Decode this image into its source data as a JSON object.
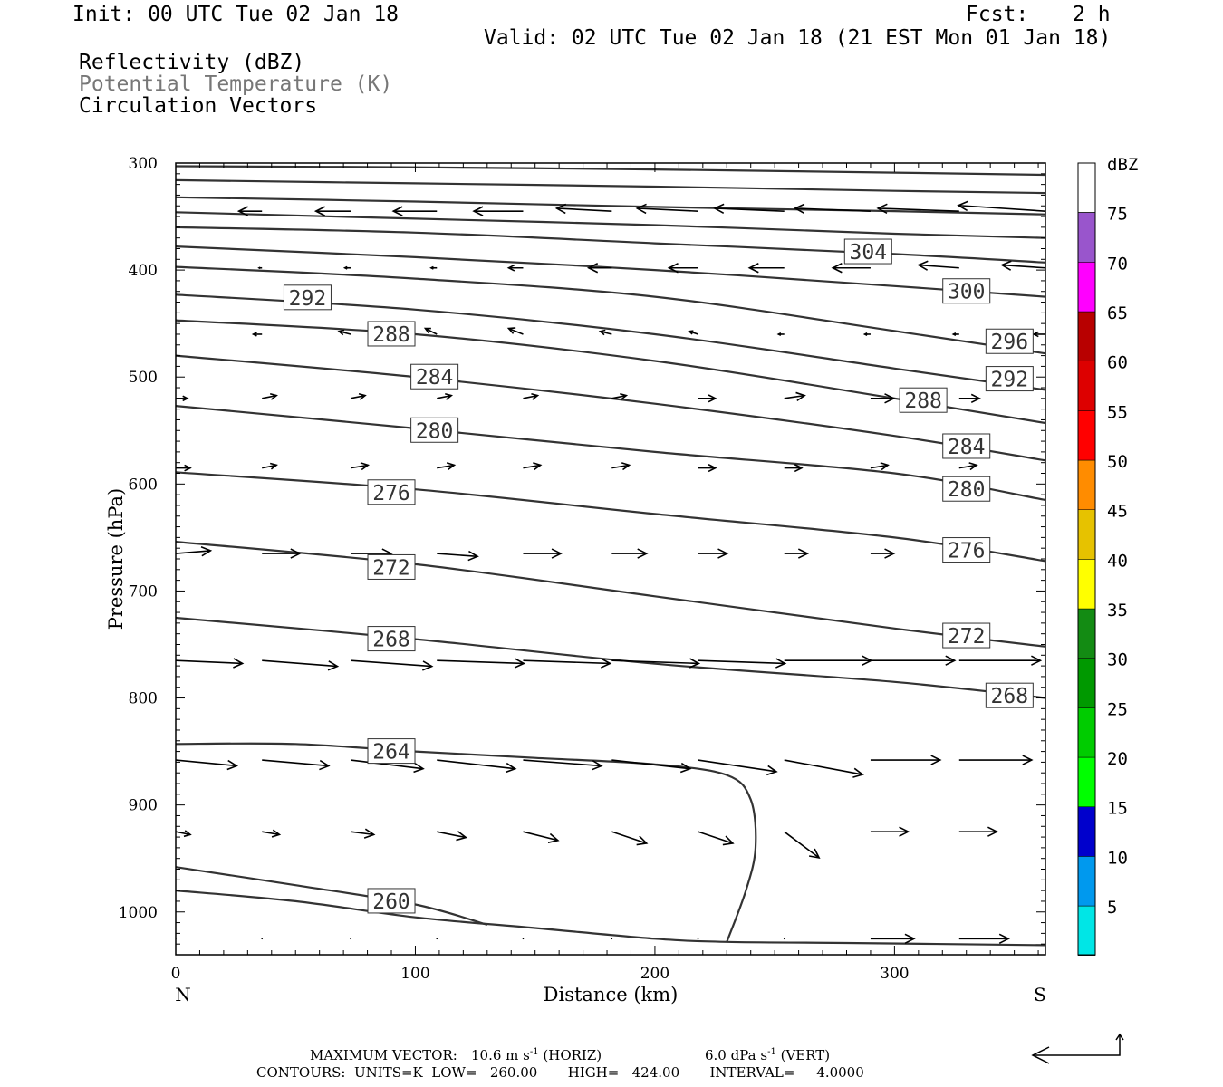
{
  "header": {
    "init": "Init: 00 UTC Tue 02 Jan 18",
    "fcst_label": "Fcst:",
    "fcst_value": "2 h",
    "valid": "Valid: 02 UTC Tue 02 Jan 18 (21 EST Mon 01 Jan 18)",
    "fields": [
      "Reflectivity (dBZ)",
      "Potential Temperature (K)",
      "Circulation Vectors"
    ]
  },
  "chart_data": {
    "type": "cross-section",
    "xlabel": "Distance (km)",
    "ylabel": "Pressure (hPa)",
    "xlim": [
      0,
      363
    ],
    "ylim": [
      1040,
      300
    ],
    "x_ticks": [
      0,
      100,
      200,
      300
    ],
    "y_ticks": [
      300,
      400,
      500,
      600,
      700,
      800,
      900,
      1000
    ],
    "x_end_labels": {
      "left": "N",
      "right": "S"
    },
    "contours": [
      {
        "level": 260,
        "points": [
          [
            0,
            958
          ],
          [
            50,
            975
          ],
          [
            100,
            993
          ],
          [
            130,
            1012
          ]
        ],
        "label": "260",
        "label_at": [
          90,
          990
        ]
      },
      {
        "level": 264,
        "points": [
          [
            0,
            843
          ],
          [
            50,
            843
          ],
          [
            100,
            850
          ],
          [
            150,
            856
          ],
          [
            200,
            862
          ],
          [
            230,
            872
          ],
          [
            240,
            895
          ],
          [
            242,
            940
          ],
          [
            238,
            980
          ],
          [
            230,
            1028
          ]
        ],
        "label": "264",
        "label_at": [
          90,
          850
        ]
      },
      {
        "level": 264,
        "points": [
          [
            0,
            980
          ],
          [
            50,
            990
          ],
          [
            100,
            1005
          ],
          [
            150,
            1015
          ],
          [
            200,
            1025
          ],
          [
            230,
            1028
          ],
          [
            280,
            1029
          ],
          [
            363,
            1031
          ]
        ]
      },
      {
        "level": 268,
        "points": [
          [
            0,
            725
          ],
          [
            100,
            745
          ],
          [
            200,
            768
          ],
          [
            300,
            785
          ],
          [
            363,
            800
          ]
        ],
        "label": "268",
        "label_at": [
          90,
          745
        ]
      },
      {
        "level": 268,
        "label": "268",
        "label_at": [
          348,
          798
        ]
      },
      {
        "level": 272,
        "points": [
          [
            0,
            654
          ],
          [
            100,
            675
          ],
          [
            200,
            705
          ],
          [
            300,
            735
          ],
          [
            363,
            752
          ]
        ],
        "label": "272",
        "label_at": [
          90,
          678
        ],
        "label2": "272",
        "label2_at": [
          330,
          742
        ]
      },
      {
        "level": 276,
        "points": [
          [
            0,
            589
          ],
          [
            100,
            605
          ],
          [
            200,
            628
          ],
          [
            300,
            650
          ],
          [
            363,
            672
          ]
        ],
        "label": "276",
        "label_at": [
          90,
          608
        ],
        "label2": "276",
        "label2_at": [
          330,
          662
        ]
      },
      {
        "level": 280,
        "points": [
          [
            0,
            527
          ],
          [
            100,
            548
          ],
          [
            200,
            570
          ],
          [
            300,
            590
          ],
          [
            363,
            615
          ]
        ],
        "label": "280",
        "label_at": [
          108,
          550
        ],
        "label2": "280",
        "label2_at": [
          330,
          605
        ]
      },
      {
        "level": 284,
        "points": [
          [
            0,
            480
          ],
          [
            100,
            500
          ],
          [
            200,
            525
          ],
          [
            300,
            555
          ],
          [
            363,
            578
          ]
        ],
        "label": "284",
        "label_at": [
          108,
          500
        ],
        "label2": "284",
        "label2_at": [
          330,
          565
        ]
      },
      {
        "level": 288,
        "points": [
          [
            0,
            447
          ],
          [
            100,
            460
          ],
          [
            200,
            485
          ],
          [
            300,
            520
          ],
          [
            363,
            543
          ]
        ],
        "label": "288",
        "label_at": [
          90,
          460
        ],
        "label2": "288",
        "label2_at": [
          312,
          522
        ]
      },
      {
        "level": 292,
        "points": [
          [
            0,
            423
          ],
          [
            100,
            437
          ],
          [
            200,
            460
          ],
          [
            300,
            492
          ],
          [
            363,
            512
          ]
        ],
        "label": "292",
        "label_at": [
          55,
          426
        ],
        "label2": "292",
        "label2_at": [
          348,
          502
        ]
      },
      {
        "level": 296,
        "points": [
          [
            0,
            397
          ],
          [
            100,
            408
          ],
          [
            200,
            425
          ],
          [
            300,
            457
          ],
          [
            363,
            478
          ]
        ],
        "label": "296",
        "label_at": [
          348,
          467
        ]
      },
      {
        "level": 300,
        "points": [
          [
            0,
            378
          ],
          [
            100,
            388
          ],
          [
            200,
            400
          ],
          [
            300,
            415
          ],
          [
            363,
            425
          ]
        ],
        "label": "300",
        "label_at": [
          330,
          420
        ]
      },
      {
        "level": 304,
        "points": [
          [
            0,
            360
          ],
          [
            100,
            365
          ],
          [
            200,
            375
          ],
          [
            300,
            385
          ],
          [
            363,
            393
          ]
        ],
        "label": "304",
        "label_at": [
          289,
          383
        ]
      },
      {
        "level": 308,
        "points": [
          [
            0,
            346
          ],
          [
            100,
            352
          ],
          [
            200,
            358
          ],
          [
            300,
            366
          ],
          [
            363,
            370
          ]
        ]
      },
      {
        "level": 312,
        "points": [
          [
            0,
            332
          ],
          [
            100,
            336
          ],
          [
            200,
            341
          ],
          [
            300,
            345
          ],
          [
            363,
            348
          ]
        ]
      },
      {
        "level": 316,
        "points": [
          [
            0,
            316
          ],
          [
            100,
            319
          ],
          [
            200,
            322
          ],
          [
            300,
            326
          ],
          [
            363,
            328
          ]
        ]
      },
      {
        "level": 320,
        "points": [
          [
            0,
            303
          ],
          [
            100,
            304
          ],
          [
            200,
            306
          ],
          [
            300,
            309
          ],
          [
            363,
            311
          ]
        ]
      }
    ],
    "vectors": [
      {
        "p": 345,
        "u": [
          -4,
          -8,
          -12,
          -15,
          -17,
          -19,
          -21,
          -24,
          -26,
          -28,
          -30
        ],
        "w": [
          0,
          0,
          0,
          0,
          0,
          -1,
          -1,
          -1,
          -1,
          -1,
          -2
        ]
      },
      {
        "p": 398,
        "u": [
          -1,
          -1,
          -2,
          -2,
          -5,
          -8,
          -10,
          -12,
          -13,
          -14,
          -15
        ],
        "w": [
          0,
          0,
          0,
          0,
          0,
          0,
          0,
          0,
          0,
          -1,
          -1
        ]
      },
      {
        "p": 460,
        "u": [
          -3,
          -3,
          -4,
          -4,
          -5,
          -4,
          -3,
          -2,
          -2,
          -2,
          -4
        ],
        "w": [
          0,
          0,
          -1,
          -2,
          -2,
          -1,
          -1,
          0,
          0,
          0,
          0
        ]
      },
      {
        "p": 520,
        "u": [
          4,
          5,
          5,
          5,
          5,
          5,
          6,
          7,
          8,
          7,
          7
        ],
        "w": [
          0,
          -1,
          -1,
          -1,
          -1,
          -1,
          0,
          -1,
          0,
          0,
          0
        ]
      },
      {
        "p": 585,
        "u": [
          5,
          5,
          6,
          6,
          6,
          6,
          6,
          6,
          6,
          6,
          6
        ],
        "w": [
          0,
          -1,
          -1,
          -1,
          -1,
          -1,
          0,
          0,
          -1,
          -1,
          0
        ]
      },
      {
        "p": 665,
        "u": [
          12,
          13,
          14,
          14,
          13,
          12,
          10,
          8,
          8,
          8,
          8
        ],
        "w": [
          -1,
          0,
          0,
          1,
          0,
          0,
          0,
          0,
          0,
          0,
          0
        ]
      },
      {
        "p": 765,
        "u": [
          23,
          26,
          28,
          30,
          30,
          30,
          30,
          30,
          29,
          28,
          27
        ],
        "w": [
          1,
          2,
          2,
          1,
          1,
          1,
          1,
          0,
          0,
          0,
          0
        ]
      },
      {
        "p": 858,
        "u": [
          21,
          23,
          25,
          27,
          27,
          27,
          27,
          27,
          24,
          25,
          27
        ],
        "w": [
          2,
          2,
          3,
          3,
          2,
          3,
          4,
          5,
          0,
          0,
          -1
        ]
      },
      {
        "p": 925,
        "u": [
          5,
          6,
          8,
          10,
          12,
          12,
          12,
          12,
          13,
          13,
          14
        ],
        "w": [
          1,
          1,
          1,
          2,
          3,
          4,
          4,
          9,
          0,
          0,
          0
        ]
      },
      {
        "p": 1025,
        "u": [
          0,
          0,
          0,
          0,
          0,
          0,
          0,
          0,
          15,
          17,
          19
        ],
        "w": [
          0,
          0,
          0,
          0,
          0,
          0,
          0,
          0,
          0,
          0,
          0
        ]
      }
    ],
    "colorbar": {
      "title": "dBZ",
      "labels": [
        "5",
        "10",
        "15",
        "20",
        "25",
        "30",
        "35",
        "40",
        "45",
        "50",
        "55",
        "60",
        "65",
        "70",
        "75"
      ],
      "colors": [
        "#00e6e6",
        "#0099ee",
        "#0000cc",
        "#00ff00",
        "#00cc00",
        "#009900",
        "#138b13",
        "#ffff00",
        "#e6c200",
        "#ff8c00",
        "#ff0000",
        "#dd0000",
        "#b80000",
        "#ff00ff",
        "#9955cc"
      ]
    }
  },
  "footer": {
    "max_vector_label": "MAXIMUM VECTOR:",
    "horiz_value": "10.6 m s",
    "horiz_unit": "(HORIZ)",
    "vert_value": "6.0 dPa s",
    "vert_unit": "(VERT)",
    "exponent": "-1",
    "contours_line": "CONTOURS:  UNITS=K  LOW=   260.00       HIGH=   424.00       INTERVAL=     4.0000"
  }
}
